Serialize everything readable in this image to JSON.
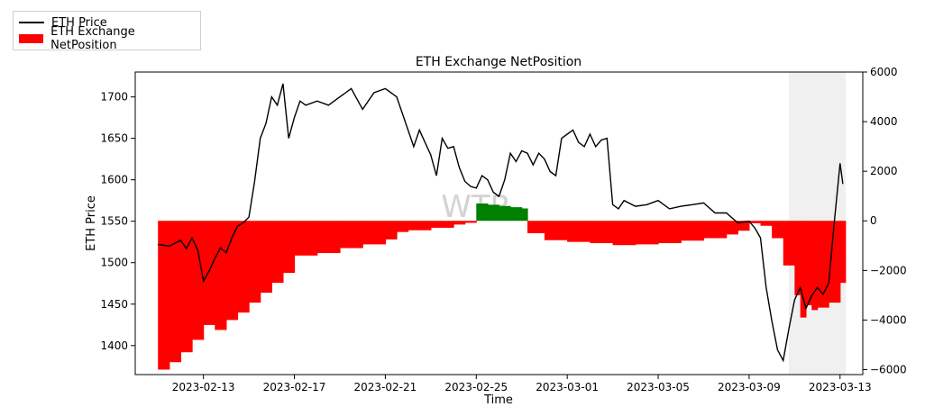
{
  "chart_data": {
    "type": "line",
    "title": "ETH Exchange NetPosition",
    "xlabel": "Time",
    "ylabel_left": "ETH Price",
    "ylabel_right": "",
    "x_ticks": [
      "2023-02-13",
      "2023-02-17",
      "2023-02-21",
      "2023-02-25",
      "2023-03-01",
      "2023-03-05",
      "2023-03-09",
      "2023-03-13"
    ],
    "y_left_ticks": [
      1400,
      1450,
      1500,
      1550,
      1600,
      1650,
      1700
    ],
    "y_right_ticks": [
      -6000,
      -4000,
      -2000,
      0,
      2000,
      4000,
      6000
    ],
    "y_left_lim": [
      1365,
      1730
    ],
    "y_right_lim": [
      -6200,
      6000
    ],
    "x_lim": [
      "2023-02-10",
      "2023-03-14"
    ],
    "legend": {
      "placement": "top-left-outside",
      "entries": [
        "ETH Price",
        "ETH Exchange NetPosition"
      ]
    },
    "colors": {
      "price": "#000000",
      "negative": "#ff0000",
      "positive": "#008000"
    },
    "series": [
      {
        "name": "ETH Price",
        "axis": "left",
        "points": [
          [
            "2023-02-11",
            1522
          ],
          [
            "2023-02-11T12",
            1520
          ],
          [
            "2023-02-12",
            1527
          ],
          [
            "2023-02-12T06",
            1517
          ],
          [
            "2023-02-12T12",
            1530
          ],
          [
            "2023-02-12T18",
            1515
          ],
          [
            "2023-02-13",
            1478
          ],
          [
            "2023-02-13T06",
            1490
          ],
          [
            "2023-02-13T12",
            1505
          ],
          [
            "2023-02-13T18",
            1518
          ],
          [
            "2023-02-14",
            1512
          ],
          [
            "2023-02-14T06",
            1530
          ],
          [
            "2023-02-14T12",
            1544
          ],
          [
            "2023-02-14T18",
            1548
          ],
          [
            "2023-02-15",
            1555
          ],
          [
            "2023-02-15T06",
            1598
          ],
          [
            "2023-02-15T12",
            1650
          ],
          [
            "2023-02-15T18",
            1668
          ],
          [
            "2023-02-16",
            1700
          ],
          [
            "2023-02-16T06",
            1690
          ],
          [
            "2023-02-16T12",
            1716
          ],
          [
            "2023-02-16T18",
            1650
          ],
          [
            "2023-02-17",
            1675
          ],
          [
            "2023-02-17T06",
            1695
          ],
          [
            "2023-02-17T12",
            1690
          ],
          [
            "2023-02-18",
            1695
          ],
          [
            "2023-02-18T12",
            1690
          ],
          [
            "2023-02-19",
            1700
          ],
          [
            "2023-02-19T12",
            1710
          ],
          [
            "2023-02-20",
            1685
          ],
          [
            "2023-02-20T12",
            1705
          ],
          [
            "2023-02-21",
            1710
          ],
          [
            "2023-02-21T12",
            1700
          ],
          [
            "2023-02-22",
            1660
          ],
          [
            "2023-02-22T06",
            1640
          ],
          [
            "2023-02-22T12",
            1660
          ],
          [
            "2023-02-23",
            1630
          ],
          [
            "2023-02-23T06",
            1605
          ],
          [
            "2023-02-23T12",
            1650
          ],
          [
            "2023-02-23T18",
            1638
          ],
          [
            "2023-02-24",
            1640
          ],
          [
            "2023-02-24T06",
            1615
          ],
          [
            "2023-02-24T12",
            1598
          ],
          [
            "2023-02-24T18",
            1592
          ],
          [
            "2023-02-25",
            1590
          ],
          [
            "2023-02-25T06",
            1605
          ],
          [
            "2023-02-25T12",
            1600
          ],
          [
            "2023-02-25T18",
            1585
          ],
          [
            "2023-02-26",
            1580
          ],
          [
            "2023-02-26T06",
            1600
          ],
          [
            "2023-02-26T12",
            1632
          ],
          [
            "2023-02-26T18",
            1622
          ],
          [
            "2023-02-27",
            1635
          ],
          [
            "2023-02-27T06",
            1632
          ],
          [
            "2023-02-27T12",
            1618
          ],
          [
            "2023-02-27T18",
            1632
          ],
          [
            "2023-02-28",
            1625
          ],
          [
            "2023-02-28T06",
            1610
          ],
          [
            "2023-02-28T12",
            1605
          ],
          [
            "2023-02-28T18",
            1650
          ],
          [
            "2023-03-01",
            1655
          ],
          [
            "2023-03-01T06",
            1660
          ],
          [
            "2023-03-01T12",
            1645
          ],
          [
            "2023-03-01T18",
            1640
          ],
          [
            "2023-03-02",
            1655
          ],
          [
            "2023-03-02T06",
            1640
          ],
          [
            "2023-03-02T12",
            1648
          ],
          [
            "2023-03-02T18",
            1650
          ],
          [
            "2023-03-03",
            1570
          ],
          [
            "2023-03-03T06",
            1565
          ],
          [
            "2023-03-03T12",
            1575
          ],
          [
            "2023-03-04",
            1568
          ],
          [
            "2023-03-04T12",
            1570
          ],
          [
            "2023-03-05",
            1575
          ],
          [
            "2023-03-05T12",
            1565
          ],
          [
            "2023-03-06",
            1568
          ],
          [
            "2023-03-06T12",
            1570
          ],
          [
            "2023-03-07",
            1572
          ],
          [
            "2023-03-07T12",
            1560
          ],
          [
            "2023-03-08",
            1560
          ],
          [
            "2023-03-08T12",
            1548
          ],
          [
            "2023-03-09",
            1550
          ],
          [
            "2023-03-09T06",
            1542
          ],
          [
            "2023-03-09T12",
            1530
          ],
          [
            "2023-03-09T18",
            1470
          ],
          [
            "2023-03-10",
            1430
          ],
          [
            "2023-03-10T06",
            1395
          ],
          [
            "2023-03-10T12",
            1382
          ],
          [
            "2023-03-10T18",
            1420
          ],
          [
            "2023-03-11",
            1455
          ],
          [
            "2023-03-11T06",
            1470
          ],
          [
            "2023-03-11T12",
            1445
          ],
          [
            "2023-03-11T18",
            1460
          ],
          [
            "2023-03-12",
            1470
          ],
          [
            "2023-03-12T06",
            1462
          ],
          [
            "2023-03-12T12",
            1475
          ],
          [
            "2023-03-12T18",
            1550
          ],
          [
            "2023-03-13",
            1620
          ],
          [
            "2023-03-13T03",
            1595
          ]
        ]
      },
      {
        "name": "ETH Exchange NetPosition",
        "axis": "right",
        "points": [
          [
            "2023-02-11",
            -6000
          ],
          [
            "2023-02-11T12",
            -5700
          ],
          [
            "2023-02-12",
            -5300
          ],
          [
            "2023-02-12T12",
            -4800
          ],
          [
            "2023-02-13",
            -4200
          ],
          [
            "2023-02-13T12",
            -4400
          ],
          [
            "2023-02-14",
            -4000
          ],
          [
            "2023-02-14T12",
            -3700
          ],
          [
            "2023-02-15",
            -3300
          ],
          [
            "2023-02-15T12",
            -2900
          ],
          [
            "2023-02-16",
            -2500
          ],
          [
            "2023-02-16T12",
            -2100
          ],
          [
            "2023-02-17",
            -1400
          ],
          [
            "2023-02-18",
            -1300
          ],
          [
            "2023-02-19",
            -1100
          ],
          [
            "2023-02-20",
            -950
          ],
          [
            "2023-02-21",
            -750
          ],
          [
            "2023-02-21T12",
            -450
          ],
          [
            "2023-02-22",
            -380
          ],
          [
            "2023-02-23",
            -280
          ],
          [
            "2023-02-24",
            -150
          ],
          [
            "2023-02-24T12",
            -80
          ],
          [
            "2023-02-25",
            700
          ],
          [
            "2023-02-25T12",
            650
          ],
          [
            "2023-02-26",
            600
          ],
          [
            "2023-02-26T12",
            550
          ],
          [
            "2023-02-27",
            500
          ],
          [
            "2023-02-27T06",
            -500
          ],
          [
            "2023-02-28",
            -780
          ],
          [
            "2023-03-01",
            -850
          ],
          [
            "2023-03-02",
            -900
          ],
          [
            "2023-03-03",
            -980
          ],
          [
            "2023-03-04",
            -950
          ],
          [
            "2023-03-05",
            -900
          ],
          [
            "2023-03-06",
            -800
          ],
          [
            "2023-03-07",
            -700
          ],
          [
            "2023-03-08",
            -550
          ],
          [
            "2023-03-08T12",
            -400
          ],
          [
            "2023-03-09",
            -100
          ],
          [
            "2023-03-09T12",
            -200
          ],
          [
            "2023-03-10",
            -700
          ],
          [
            "2023-03-10T12",
            -1800
          ],
          [
            "2023-03-11",
            -3000
          ],
          [
            "2023-03-11T06",
            -3900
          ],
          [
            "2023-03-11T12",
            -3400
          ],
          [
            "2023-03-11T18",
            -3600
          ],
          [
            "2023-03-12",
            -3500
          ],
          [
            "2023-03-12T12",
            -3300
          ],
          [
            "2023-03-13",
            -2500
          ]
        ]
      }
    ],
    "overlay": {
      "watermark_text": "WTR",
      "shaded_region": [
        "2023-03-10T18",
        "2023-03-13T06"
      ]
    }
  }
}
